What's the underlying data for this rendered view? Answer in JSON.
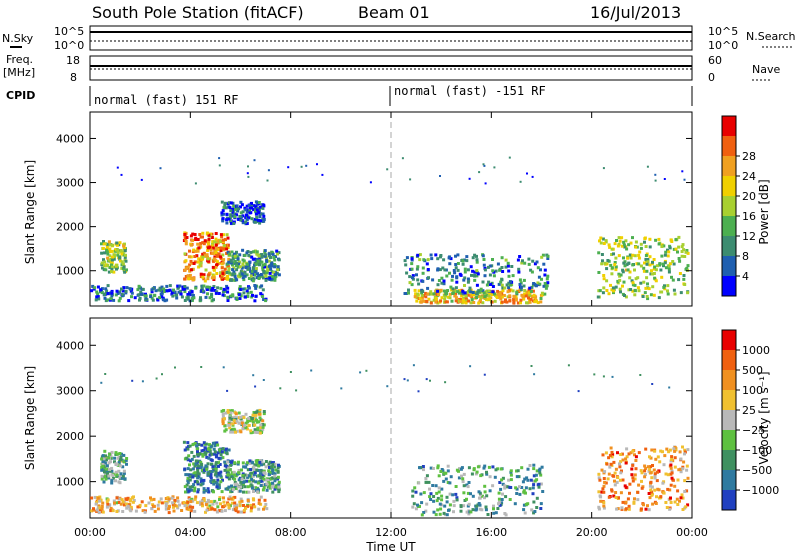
{
  "header": {
    "station": "South Pole Station (fitACF)",
    "beam": "Beam 01",
    "date": "16/Jul/2013"
  },
  "status_panels": {
    "nsky_label": "N.Sky",
    "nsky_ticks": [
      "10^5",
      "10^0"
    ],
    "nsearch_label": "N.Search",
    "nsearch_ticks": [
      "10^5",
      "10^0"
    ],
    "freq_label": "Freq.",
    "freq_unit": "[MHz]",
    "freq_ticks": [
      "18",
      "8"
    ],
    "nave_label": "Nave",
    "nave_ticks": [
      "60",
      "0"
    ],
    "cpid_label": "CPID",
    "cpid_modes": [
      "normal (fast) 151 RF",
      "normal (fast) -151 RF"
    ]
  },
  "chart_data": [
    {
      "type": "heatmap",
      "panel": "power",
      "ylabel": "Slant Range [km]",
      "yticks": [
        "1000",
        "2000",
        "3000",
        "4000"
      ],
      "ylim": [
        200,
        4600
      ],
      "xlim": [
        0,
        24
      ],
      "colorbar_label": "Power [dB]",
      "colorbar_ticks": [
        "4",
        "8",
        "12",
        "16",
        "20",
        "24",
        "28"
      ],
      "colorbar_colors": [
        "#0000ff",
        "#1f5fb0",
        "#3c8c70",
        "#4caf50",
        "#a8d030",
        "#f0d000",
        "#f0a020",
        "#f06010",
        "#e80000"
      ],
      "regions": [
        {
          "t0": 0.4,
          "t1": 1.4,
          "r0": 1000,
          "r1": 1700,
          "level": 0.45
        },
        {
          "t0": 3.7,
          "t1": 5.5,
          "r0": 800,
          "r1": 1900,
          "level": 0.75
        },
        {
          "t0": 5.2,
          "t1": 6.9,
          "r0": 2100,
          "r1": 2600,
          "level": 0.15
        },
        {
          "t0": 5.4,
          "t1": 7.5,
          "r0": 800,
          "r1": 1500,
          "level": 0.3
        },
        {
          "t0": 0.0,
          "t1": 7.0,
          "r0": 350,
          "r1": 700,
          "level": 0.2
        },
        {
          "t0": 12.8,
          "t1": 18.0,
          "r0": 300,
          "r1": 600,
          "level": 0.65
        },
        {
          "t0": 12.5,
          "t1": 18.2,
          "r0": 500,
          "r1": 1400,
          "level": 0.25
        },
        {
          "t0": 20.2,
          "t1": 23.8,
          "r0": 400,
          "r1": 1800,
          "level": 0.45
        }
      ]
    },
    {
      "type": "heatmap",
      "panel": "velocity",
      "ylabel": "Slant Range [km]",
      "yticks": [
        "1000",
        "2000",
        "3000",
        "4000"
      ],
      "ylim": [
        200,
        4600
      ],
      "xlabel": "Time UT",
      "xticks": [
        "00:00",
        "04:00",
        "08:00",
        "12:00",
        "16:00",
        "20:00",
        "00:00"
      ],
      "xtick_values": [
        0,
        4,
        8,
        12,
        16,
        20,
        24
      ],
      "xlim": [
        0,
        24
      ],
      "colorbar_label": "Velocity [m s⁻¹]",
      "colorbar_ticks": [
        "1000",
        "500",
        "100",
        "25",
        "−25",
        "−100",
        "−500",
        "−1000"
      ],
      "colorbar_colors": [
        "#2040c0",
        "#2f7aa0",
        "#3f9060",
        "#5ec040",
        "#b8b8b8",
        "#f0c030",
        "#f09020",
        "#f06010",
        "#e80000"
      ],
      "regions": [
        {
          "t0": 0.4,
          "t1": 1.4,
          "r0": 1000,
          "r1": 1700,
          "level": 0.35
        },
        {
          "t0": 3.7,
          "t1": 5.5,
          "r0": 800,
          "r1": 1900,
          "level": 0.2
        },
        {
          "t0": 5.2,
          "t1": 6.9,
          "r0": 2100,
          "r1": 2600,
          "level": 0.5
        },
        {
          "t0": 5.4,
          "t1": 7.5,
          "r0": 800,
          "r1": 1500,
          "level": 0.3
        },
        {
          "t0": 0.0,
          "t1": 7.0,
          "r0": 350,
          "r1": 700,
          "level": 0.65
        },
        {
          "t0": 12.8,
          "t1": 18.0,
          "r0": 300,
          "r1": 1400,
          "level": 0.3
        },
        {
          "t0": 20.2,
          "t1": 23.8,
          "r0": 400,
          "r1": 1800,
          "level": 0.7
        }
      ]
    }
  ]
}
